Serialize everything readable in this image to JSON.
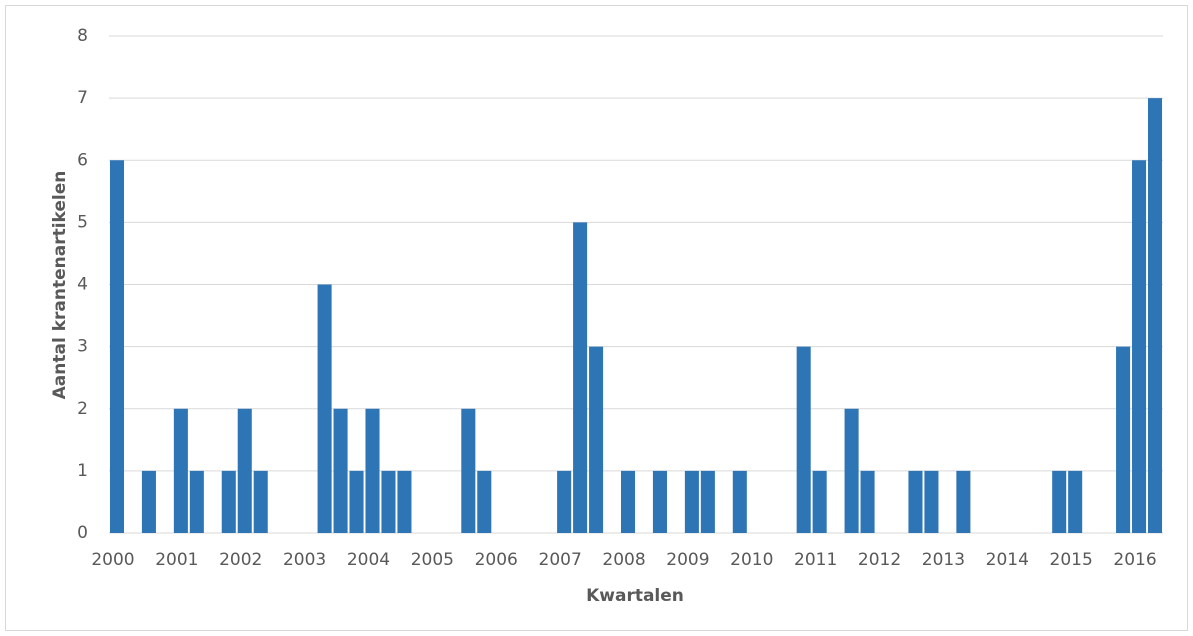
{
  "chart_data": {
    "type": "bar",
    "x_label": "Kwartalen",
    "y_label": "Aantal krantenartikelen",
    "categories": [
      "2000",
      null,
      null,
      null,
      "2001",
      null,
      null,
      null,
      "2002",
      null,
      null,
      null,
      "2003",
      null,
      null,
      null,
      "2004",
      null,
      null,
      null,
      "2005",
      null,
      null,
      null,
      "2006",
      null,
      null,
      null,
      "2007",
      null,
      null,
      null,
      "2008",
      null,
      null,
      null,
      "2009",
      null,
      null,
      null,
      "2010",
      null,
      null,
      null,
      "2011",
      null,
      null,
      null,
      "2012",
      null,
      null,
      null,
      "2013",
      null,
      null,
      null,
      "2014",
      null,
      null,
      null,
      "2015",
      null,
      null,
      null,
      "2016",
      null
    ],
    "values": [
      6,
      0,
      1,
      0,
      2,
      1,
      0,
      1,
      2,
      1,
      0,
      0,
      0,
      4,
      2,
      1,
      2,
      1,
      1,
      0,
      0,
      0,
      2,
      1,
      0,
      0,
      0,
      0,
      1,
      5,
      3,
      0,
      1,
      0,
      1,
      0,
      1,
      1,
      0,
      1,
      0,
      0,
      0,
      3,
      1,
      0,
      2,
      1,
      0,
      0,
      1,
      1,
      0,
      1,
      0,
      0,
      0,
      0,
      0,
      1,
      1,
      0,
      0,
      3,
      6,
      7
    ],
    "color": "#2e75b6",
    "ylim": [
      0,
      8
    ],
    "yticks": [
      0,
      1,
      2,
      3,
      4,
      5,
      6,
      7,
      8
    ],
    "grid": true
  }
}
